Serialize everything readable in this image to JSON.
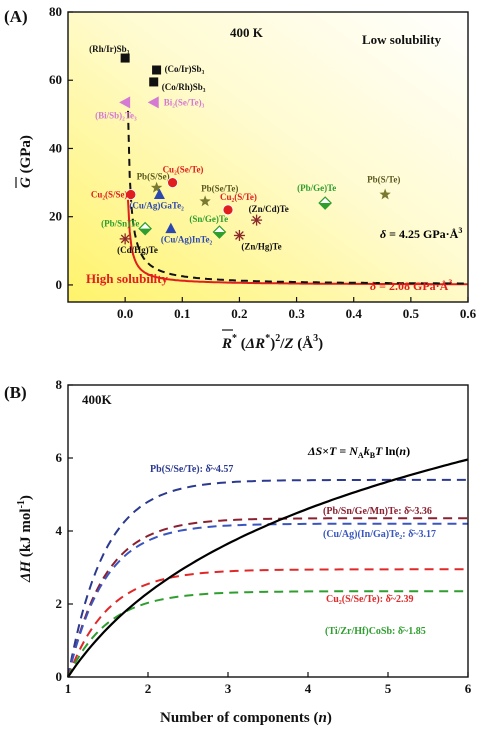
{
  "chart_data": [
    {
      "type": "scatter",
      "panel_label": "(A)",
      "temperature": "400 K",
      "region_low": "Low solubility",
      "region_high": "High solubility",
      "xlabel": "R̄* (ΔR*)²/Z (Å³)",
      "ylabel": "G̅ (GPa)",
      "xlim": [
        -0.1,
        0.6
      ],
      "ylim": [
        -5,
        80
      ],
      "xticks": [
        "0.0",
        "0.1",
        "0.2",
        "0.3",
        "0.4",
        "0.5",
        "0.6"
      ],
      "yticks": [
        "0",
        "20",
        "40",
        "60",
        "80"
      ],
      "xtick_values": [
        0.0,
        0.1,
        0.2,
        0.3,
        0.4,
        0.5,
        0.6
      ],
      "ytick_values": [
        0,
        20,
        40,
        60,
        80
      ],
      "curves": [
        {
          "name": "δ = 2.08 GPa·Å³",
          "delta": 2.08,
          "style": "solid",
          "color": "#e01e1e"
        },
        {
          "name": "δ = 4.25 GPa·Å³",
          "delta": 4.25,
          "style": "dashed",
          "color": "#111111"
        }
      ],
      "points": [
        {
          "label": "(Rh/Ir)Sb₃",
          "x": 0.0,
          "y": 66.5,
          "marker": "square",
          "color": "#111111"
        },
        {
          "label": "(Co/Ir)Sb₃",
          "x": 0.055,
          "y": 63.0,
          "marker": "square",
          "color": "#111111"
        },
        {
          "label": "(Co/Rh)Sb₃",
          "x": 0.05,
          "y": 59.5,
          "marker": "square",
          "color": "#111111"
        },
        {
          "label": "(Bi/Sb)₂Te₃",
          "x": 0.0,
          "y": 53.5,
          "marker": "triangle-left",
          "color": "#d47ad4"
        },
        {
          "label": "Bi₂(Se/Te)₃",
          "x": 0.05,
          "y": 53.5,
          "marker": "triangle-left",
          "color": "#d47ad4"
        },
        {
          "label": "Pb(S/Se)",
          "x": 0.055,
          "y": 28.5,
          "marker": "star",
          "color": "#7a7a30"
        },
        {
          "label": "Cu₂(Se/Te)",
          "x": 0.083,
          "y": 30.0,
          "marker": "circle",
          "color": "#e01e1e"
        },
        {
          "label": "Cu₂(S/Se)",
          "x": 0.01,
          "y": 26.5,
          "marker": "circle",
          "color": "#e01e1e"
        },
        {
          "label": "(Cu/Ag)GaTe₂",
          "x": 0.06,
          "y": 26.5,
          "marker": "triangle",
          "color": "#2b48b0"
        },
        {
          "label": "(Pb/Sn)Te",
          "x": 0.035,
          "y": 16.5,
          "marker": "diamond",
          "color": "#2e9e2e"
        },
        {
          "label": "(Cu/Ag)InTe₂",
          "x": 0.08,
          "y": 16.5,
          "marker": "triangle",
          "color": "#2b48b0"
        },
        {
          "label": "(Cd/Hg)Te",
          "x": 0.0,
          "y": 13.5,
          "marker": "asterisk",
          "color": "#8a2a2a"
        },
        {
          "label": "Pb(Se/Te)",
          "x": 0.14,
          "y": 24.5,
          "marker": "star",
          "color": "#7a7a30"
        },
        {
          "label": "(Sn/Ge)Te",
          "x": 0.165,
          "y": 15.5,
          "marker": "diamond",
          "color": "#2e9e2e"
        },
        {
          "label": "Cu₂(S/Te)",
          "x": 0.18,
          "y": 22.0,
          "marker": "circle",
          "color": "#e01e1e"
        },
        {
          "label": "(Zn/Hg)Te",
          "x": 0.2,
          "y": 14.5,
          "marker": "asterisk",
          "color": "#8a2a2a"
        },
        {
          "label": "(Zn/Cd)Te",
          "x": 0.23,
          "y": 19.0,
          "marker": "asterisk",
          "color": "#8a2a2a"
        },
        {
          "label": "(Pb/Ge)Te",
          "x": 0.35,
          "y": 24.0,
          "marker": "diamond",
          "color": "#2e9e2e"
        },
        {
          "label": "Pb(S/Te)",
          "x": 0.455,
          "y": 26.5,
          "marker": "star",
          "color": "#7a7a30"
        }
      ]
    },
    {
      "type": "line",
      "panel_label": "(B)",
      "temperature": "400K",
      "xlabel": "Number of components (n)",
      "ylabel": "ΔH (kJ mol⁻¹)",
      "xlim": [
        1,
        6
      ],
      "ylim": [
        0,
        8
      ],
      "xticks": [
        "1",
        "2",
        "3",
        "4",
        "5",
        "6"
      ],
      "yticks": [
        "0",
        "2",
        "4",
        "6",
        "8"
      ],
      "xtick_values": [
        1,
        2,
        3,
        4,
        5,
        6
      ],
      "ytick_values": [
        0,
        2,
        4,
        6,
        8
      ],
      "entropy_label": "ΔS×T = N_A k_B T ln(n)",
      "entropy_series": {
        "x": [
          1,
          1.5,
          2,
          2.5,
          3,
          3.5,
          4,
          4.5,
          5,
          5.5,
          6
        ],
        "y": [
          0,
          1.35,
          2.31,
          3.05,
          3.65,
          4.17,
          4.61,
          5.0,
          5.35,
          5.67,
          5.96
        ],
        "color": "#000000"
      },
      "series": [
        {
          "name": "Pb(S/Se/Te): δ̄~4.57",
          "plateau": 5.4,
          "k": 2.2,
          "color": "#2b3a8f"
        },
        {
          "name": "(Pb/Sn/Ge/Mn)Te: δ̄~3.36",
          "plateau": 4.35,
          "k": 2.2,
          "color": "#8a2030"
        },
        {
          "name": "(Cu/Ag)(In/Ga)Te₂: δ̄~3.17",
          "plateau": 4.2,
          "k": 2.2,
          "color": "#3a55c0"
        },
        {
          "name": "Cu₂(S/Se/Te): δ̄~2.39",
          "plateau": 2.95,
          "k": 2.0,
          "color": "#e02828"
        },
        {
          "name": "(Ti/Zr/Hf)CoSb: δ̄~1.85",
          "plateau": 2.35,
          "k": 2.0,
          "color": "#2e9e2e"
        }
      ]
    }
  ]
}
